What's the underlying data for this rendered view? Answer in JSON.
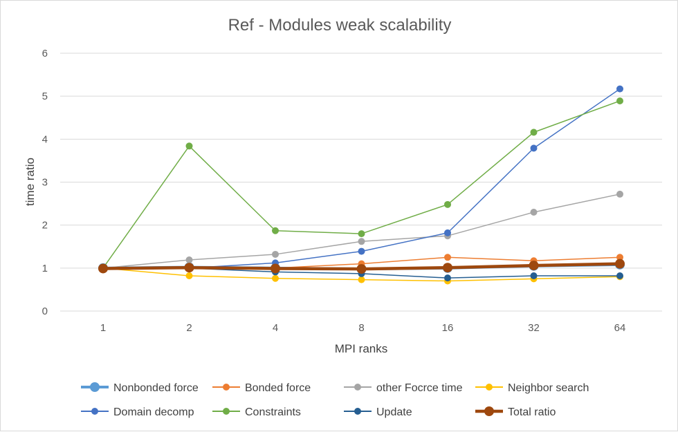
{
  "chart_data": {
    "type": "line",
    "title": "Ref - Modules weak scalability",
    "xlabel": "MPI ranks",
    "ylabel": "time ratio",
    "categories": [
      "1",
      "2",
      "4",
      "8",
      "16",
      "32",
      "64"
    ],
    "ylim": [
      0,
      6
    ],
    "yticks": [
      "0",
      "1",
      "2",
      "3",
      "4",
      "5",
      "6"
    ],
    "grid": true,
    "legend_position": "bottom",
    "series": [
      {
        "name": "Nonbonded force",
        "color": "#5b9bd5",
        "width": 4,
        "marker": 7,
        "values": [
          1.0,
          1.02,
          1.0,
          0.98,
          1.0,
          1.05,
          1.08
        ]
      },
      {
        "name": "Bonded force",
        "color": "#ed7d31",
        "width": 1.5,
        "marker": 5,
        "values": [
          1.0,
          1.02,
          1.0,
          1.1,
          1.25,
          1.17,
          1.25
        ]
      },
      {
        "name": "other Focrce time",
        "color": "#a5a5a5",
        "width": 1.5,
        "marker": 5,
        "values": [
          1.0,
          1.19,
          1.32,
          1.62,
          1.75,
          2.3,
          2.72
        ]
      },
      {
        "name": "Neighbor search",
        "color": "#ffc000",
        "width": 1.5,
        "marker": 5,
        "values": [
          1.0,
          0.82,
          0.76,
          0.73,
          0.7,
          0.75,
          0.8
        ]
      },
      {
        "name": "Domain decomp",
        "color": "#4472c4",
        "width": 1.5,
        "marker": 5,
        "values": [
          1.0,
          1.0,
          1.12,
          1.39,
          1.82,
          3.79,
          5.17
        ]
      },
      {
        "name": "Constraints",
        "color": "#70ad47",
        "width": 1.5,
        "marker": 5,
        "values": [
          1.0,
          3.84,
          1.87,
          1.8,
          2.48,
          4.16,
          4.89
        ]
      },
      {
        "name": "Update",
        "color": "#255e91",
        "width": 1.5,
        "marker": 5,
        "values": [
          1.0,
          1.0,
          0.91,
          0.87,
          0.77,
          0.82,
          0.82
        ]
      },
      {
        "name": "Total ratio",
        "color": "#9e480e",
        "width": 4.5,
        "marker": 7,
        "values": [
          0.99,
          1.01,
          0.99,
          0.98,
          1.01,
          1.06,
          1.1
        ]
      }
    ]
  }
}
